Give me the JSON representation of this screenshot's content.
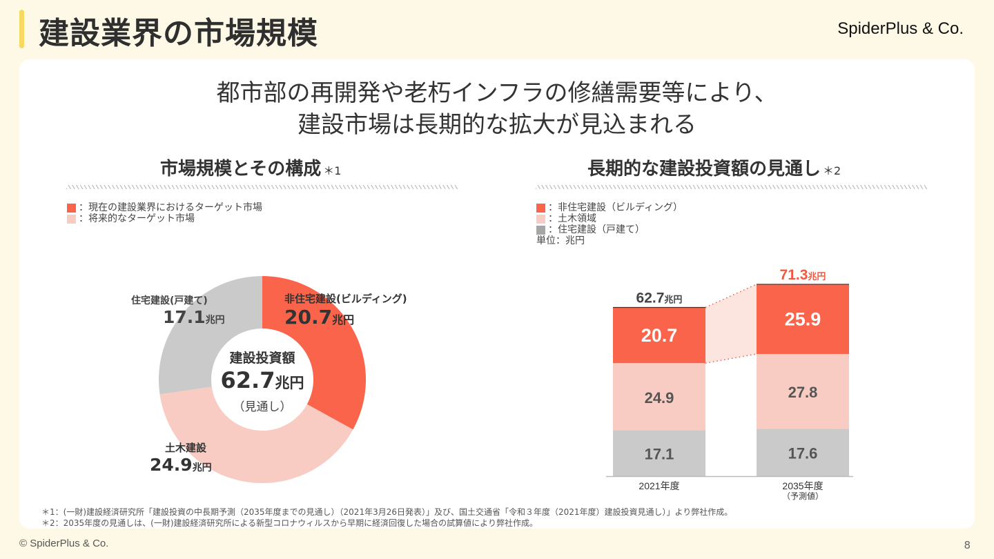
{
  "header": {
    "title": "建設業界の市場規模",
    "brand": "SpiderPlus & Co."
  },
  "headline": {
    "line1": "都市部の再開発や老朽インフラの修繕需要等により、",
    "line2": "建設市場は長期的な拡大が見込まれる"
  },
  "left_section": {
    "title": "市場規模とその構成",
    "note": "＊1",
    "legend": [
      {
        "label": "：現在の建設業界におけるターゲット市場",
        "color": "#f9644a"
      },
      {
        "label": "：将来的なターゲット市場",
        "color": "#f9ccc3"
      }
    ]
  },
  "right_section": {
    "title": "長期的な建設投資額の見通し",
    "note": "＊2",
    "legend": [
      {
        "label": "：非住宅建設（ビルディング）",
        "color": "#f9644a"
      },
      {
        "label": "：土木領域",
        "color": "#f9ccc3"
      },
      {
        "label": "：住宅建設（戸建て）",
        "color": "#a6a6a6"
      }
    ],
    "unit_label": "単位：兆円"
  },
  "chart_data": [
    {
      "type": "pie",
      "title": "市場規模とその構成",
      "center_label": {
        "title": "建設投資額",
        "value": "62.7",
        "unit": "兆円",
        "sub": "（見通し）"
      },
      "unit": "兆円",
      "slices": [
        {
          "name": "非住宅建設(ビルディング)",
          "value": 20.7,
          "color": "#f9644a"
        },
        {
          "name": "土木建設",
          "value": 24.9,
          "color": "#f9ccc3"
        },
        {
          "name": "住宅建設(戸建て)",
          "value": 17.1,
          "color": "#cacaca"
        }
      ]
    },
    {
      "type": "bar",
      "stacked": true,
      "title": "長期的な建設投資額の見通し",
      "unit": "兆円",
      "categories": [
        "2021年度",
        "2035年度"
      ],
      "category_sublabels": [
        "",
        "（予測値）"
      ],
      "series": [
        {
          "name": "住宅建設（戸建て）",
          "values": [
            17.1,
            17.6
          ],
          "color": "#cacaca",
          "label_color": "#555555"
        },
        {
          "name": "土木領域",
          "values": [
            24.9,
            27.8
          ],
          "color": "#f9ccc3",
          "label_color": "#555555"
        },
        {
          "name": "非住宅建設（ビルディング）",
          "values": [
            20.7,
            25.9
          ],
          "color": "#f9644a",
          "label_color": "#ffffff"
        }
      ],
      "totals": [
        {
          "value": "62.7",
          "unit": "兆円",
          "color": "#444444"
        },
        {
          "value": "71.3",
          "unit": "兆円",
          "color": "#f05a40"
        }
      ],
      "ylim": [
        0,
        72
      ]
    }
  ],
  "footnotes": [
    "＊1：(一財)建設経済研究所「建設投資の中長期予測（2035年度までの見通し）（2021年3月26日発表）」及び、国土交通省「令和３年度（2021年度）建設投資見通し）」より弊社作成。",
    "＊2：2035年度の見通しは、(一財)建設経済研究所による新型コロナウィルスから早期に経済回復した場合の試算値により弊社作成。"
  ],
  "footer": {
    "copyright": "© SpiderPlus & Co.",
    "page_number": "8"
  }
}
